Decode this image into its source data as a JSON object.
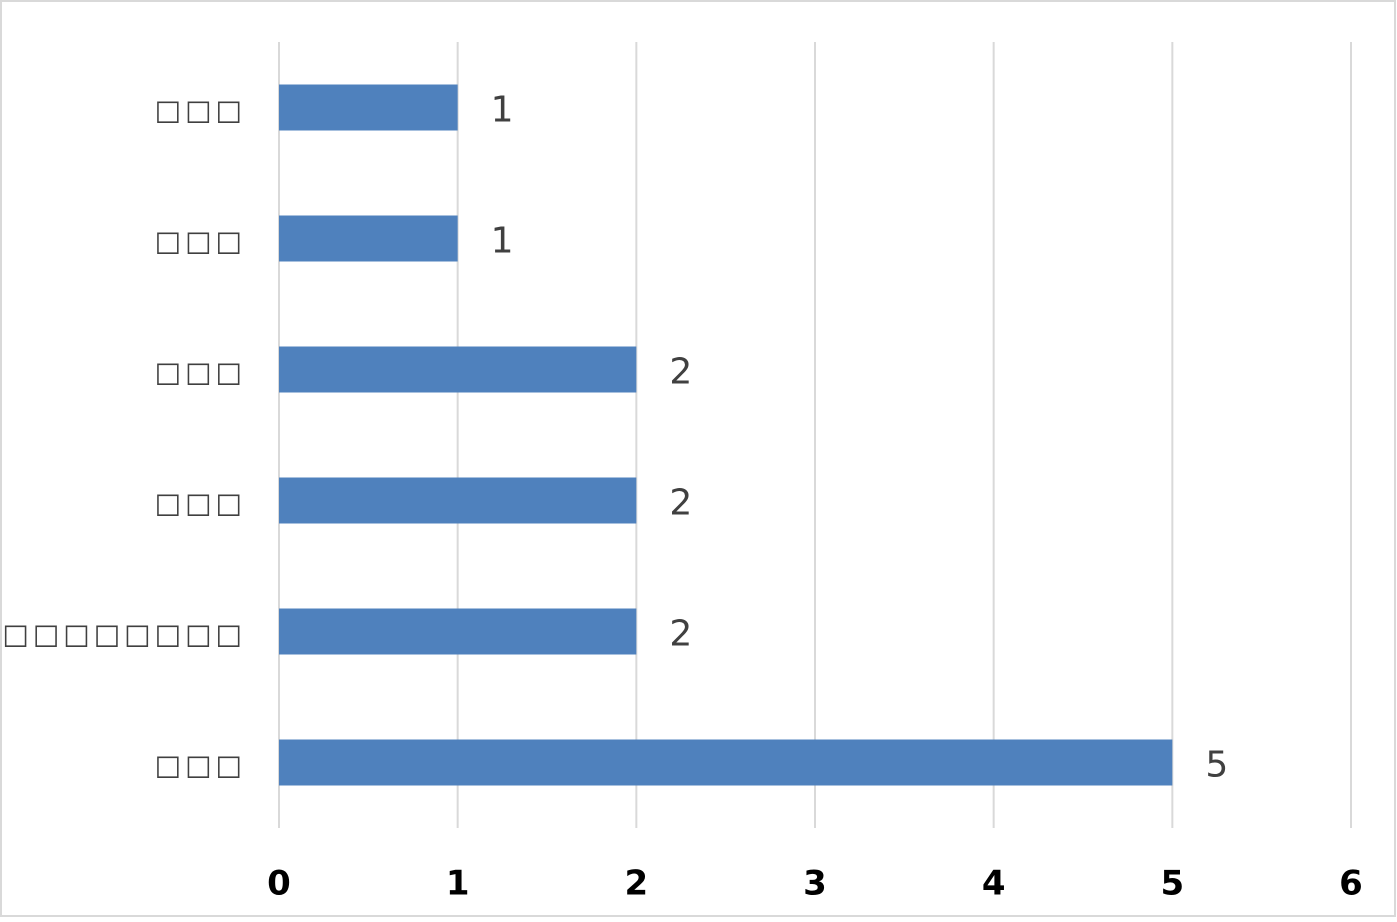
{
  "chart_data": {
    "type": "bar",
    "orientation": "horizontal",
    "categories": [
      "□□□",
      "□□□",
      "□□□",
      "□□□",
      "□□□□□□□□",
      "□□□"
    ],
    "values": [
      1,
      1,
      2,
      2,
      2,
      5
    ],
    "color": "#4f81bd",
    "xlim": [
      0,
      6
    ],
    "xticks": [
      0,
      1,
      2,
      3,
      4,
      5,
      6
    ],
    "grid": true
  }
}
